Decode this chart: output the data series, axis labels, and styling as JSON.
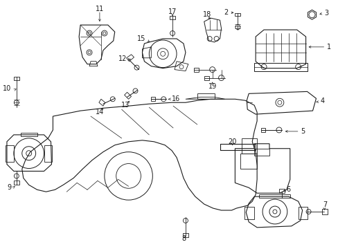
{
  "bg_color": "#ffffff",
  "line_color": "#1a1a1a",
  "figsize": [
    4.89,
    3.6
  ],
  "dpi": 100,
  "parts": {
    "label_positions": {
      "1": [
        474,
        67,
        448,
        67
      ],
      "2": [
        330,
        18,
        344,
        25
      ],
      "3": [
        470,
        18,
        458,
        22
      ],
      "4": [
        463,
        148,
        450,
        151
      ],
      "5": [
        436,
        192,
        424,
        192
      ],
      "6": [
        408,
        278,
        408,
        288
      ],
      "7": [
        468,
        298,
        462,
        308
      ],
      "8": [
        268,
        338,
        268,
        325
      ],
      "9": [
        18,
        262,
        22,
        250
      ],
      "10": [
        15,
        132,
        22,
        142
      ],
      "11": [
        143,
        14,
        143,
        25
      ],
      "12": [
        183,
        87,
        193,
        97
      ],
      "13": [
        182,
        152,
        192,
        145
      ],
      "14": [
        145,
        163,
        155,
        153
      ],
      "15": [
        210,
        57,
        218,
        67
      ],
      "16": [
        245,
        148,
        235,
        145
      ],
      "17": [
        249,
        18,
        249,
        30
      ],
      "18": [
        299,
        22,
        299,
        35
      ],
      "19": [
        307,
        122,
        307,
        110
      ],
      "20": [
        336,
        208,
        336,
        218
      ]
    }
  }
}
